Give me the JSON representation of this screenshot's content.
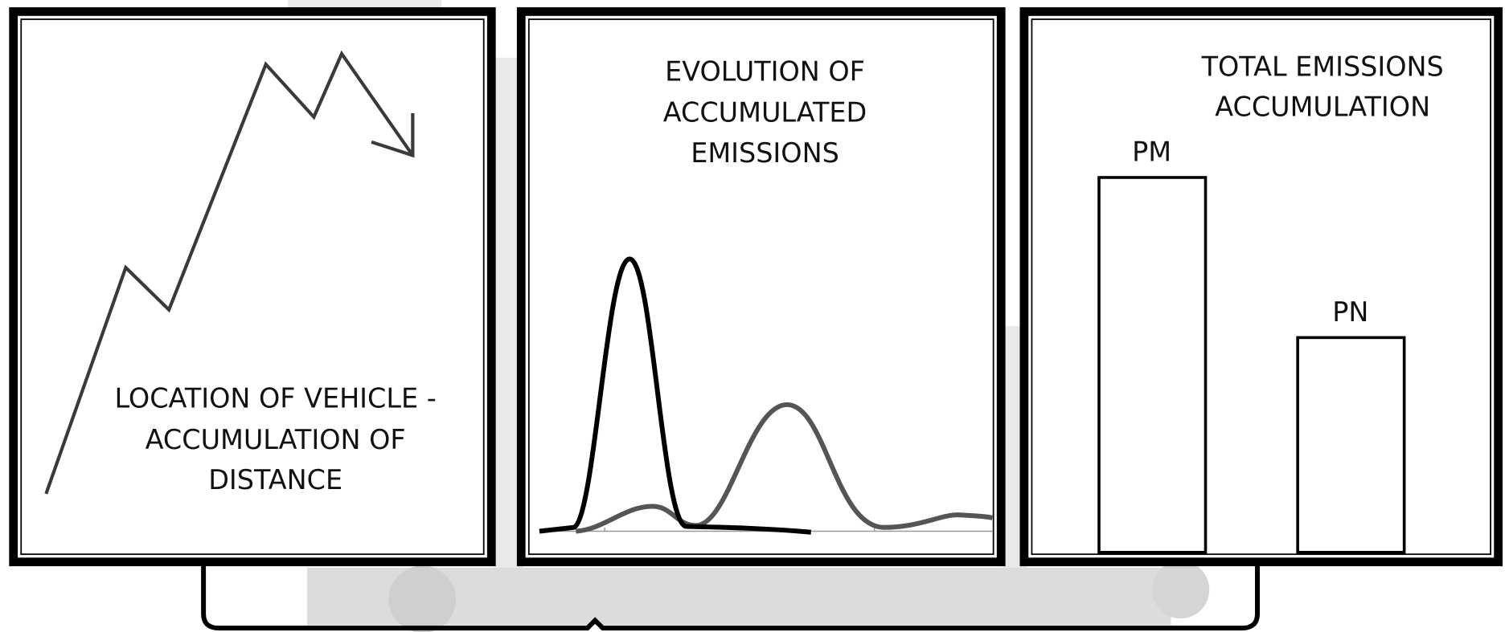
{
  "panels": [
    {
      "label_lines": [
        "LOCATION OF VEHICLE -",
        "ACCUMULATION OF",
        "DISTANCE"
      ]
    },
    {
      "title_lines": [
        "EVOLUTION OF",
        "ACCUMULATED",
        "EMISSIONS"
      ]
    },
    {
      "title_lines": [
        "TOTAL EMISSIONS",
        "ACCUMULATION"
      ],
      "bar_labels": [
        "PM",
        "PN"
      ]
    }
  ]
}
